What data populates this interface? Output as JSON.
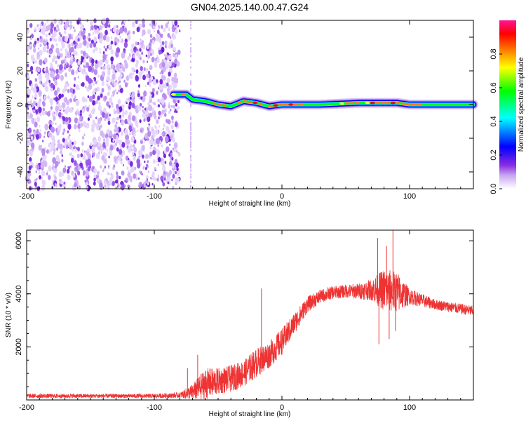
{
  "title": "GN04.2025.140.00.47.G24",
  "chart_data": [
    {
      "type": "heatmap",
      "panel": "top",
      "xlabel": "Height of straight line (km)",
      "ylabel": "Frequency (Hz)",
      "xlim": [
        -200,
        150
      ],
      "ylim": [
        -50,
        50
      ],
      "x_ticks": [
        "-200",
        "-100",
        "0",
        "100"
      ],
      "y_ticks": [
        "-40",
        "-20",
        "0",
        "20",
        "40"
      ],
      "colorbar": {
        "label": "Normalized spectral amplitude",
        "range": [
          0,
          1
        ],
        "ticks": [
          "0.0",
          "0.2",
          "0.4",
          "0.6",
          "0.8"
        ],
        "colors": [
          "#ffffff",
          "#8a2be2",
          "#0000ff",
          "#00ffff",
          "#00ff00",
          "#ffff00",
          "#ff8000",
          "#ff0000",
          "#ff1493"
        ]
      },
      "noise_region_x": [
        -200,
        -70
      ],
      "signal_band": {
        "x": [
          -85,
          -75,
          -70,
          -60,
          -50,
          -40,
          -30,
          -20,
          -10,
          0,
          10,
          30,
          60,
          80,
          90,
          100,
          150
        ],
        "freq": [
          6,
          6,
          3,
          2,
          0,
          -1,
          2,
          1,
          -1,
          0,
          0,
          0,
          1,
          1,
          1,
          0,
          0
        ],
        "amplitude": [
          0.7,
          0.85,
          0.5,
          0.6,
          0.75,
          0.7,
          0.8,
          0.8,
          0.7,
          0.85,
          0.8,
          0.6,
          0.75,
          0.85,
          0.85,
          0.75,
          0.6
        ]
      }
    },
    {
      "type": "line",
      "panel": "bottom",
      "xlabel": "Height of straight line (km)",
      "ylabel": "SNR (10 * v/v)",
      "xlim": [
        -200,
        150
      ],
      "ylim": [
        0,
        6400
      ],
      "x_ticks": [
        "-200",
        "-100",
        "0",
        "100"
      ],
      "y_ticks": [
        "2000",
        "4000",
        "6000"
      ],
      "color": "#ee3333",
      "envelope": {
        "x": [
          -200,
          -150,
          -100,
          -80,
          -70,
          -60,
          -50,
          -40,
          -30,
          -20,
          -10,
          0,
          10,
          20,
          30,
          40,
          50,
          60,
          70,
          80,
          90,
          100,
          120,
          150
        ],
        "mean": [
          150,
          150,
          150,
          180,
          300,
          600,
          700,
          800,
          1000,
          1400,
          1700,
          2200,
          2900,
          3600,
          3900,
          4050,
          4100,
          4100,
          4150,
          4150,
          4050,
          3900,
          3600,
          3350
        ],
        "spread": [
          80,
          80,
          80,
          100,
          300,
          600,
          500,
          500,
          500,
          550,
          500,
          500,
          400,
          300,
          250,
          250,
          250,
          300,
          400,
          800,
          800,
          300,
          200,
          200
        ]
      },
      "spikes": [
        {
          "x": -74,
          "y": 1200
        },
        {
          "x": -66,
          "y": 1700
        },
        {
          "x": -16,
          "y": 4200
        },
        {
          "x": 75,
          "y": 6100
        },
        {
          "x": 76,
          "y": 2100
        },
        {
          "x": 82,
          "y": 5800
        },
        {
          "x": 84,
          "y": 2300
        },
        {
          "x": 87,
          "y": 6400
        },
        {
          "x": 89,
          "y": 2600
        }
      ]
    }
  ]
}
